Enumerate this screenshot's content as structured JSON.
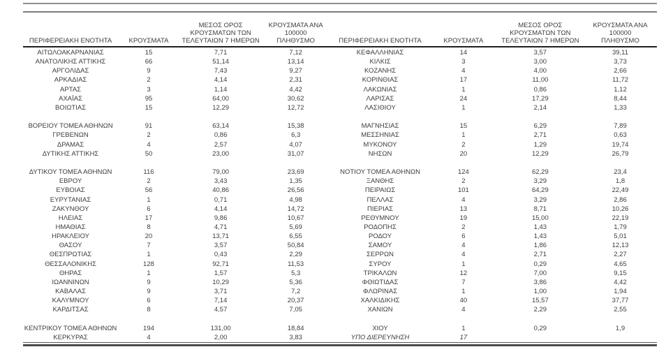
{
  "columns": [
    {
      "key": "name",
      "label": "ΠΕΡΙΦΕΡΕΙΑΚΗ ΕΝΟΤΗΤΑ",
      "label_lines": [
        "ΠΕΡΙΦΕΡΕΙΑΚΗ ΕΝΟΤΗΤΑ"
      ]
    },
    {
      "key": "cases",
      "label": "ΚΡΟΥΣΜΑΤΑ",
      "label_lines": [
        "ΚΡΟΥΣΜΑΤΑ"
      ]
    },
    {
      "key": "avg7",
      "label": "ΜΕΣΟΣ ΟΡΟΣ ΚΡΟΥΣΜΑΤΩΝ ΤΩΝ ΤΕΛΕΥΤΑΙΩΝ 7 ΗΜΕΡΩΝ",
      "label_lines": [
        "ΜΕΣΟΣ ΟΡΟΣ",
        "ΚΡΟΥΣΜΑΤΩΝ ΤΩΝ",
        "ΤΕΛΕΥΤΑΙΩΝ 7 ΗΜΕΡΩΝ"
      ]
    },
    {
      "key": "per100k",
      "label": "ΚΡΟΥΣΜΑΤΑ ΑΝΑ 100000 ΠΛΗΘΥΣΜΟ",
      "label_lines": [
        "ΚΡΟΥΣΜΑΤΑ ΑΝΑ 100000",
        "ΠΛΗΘΥΣΜΟ"
      ]
    }
  ],
  "colors": {
    "text": "#3d3d3d",
    "top_rules": "#8f8f8f",
    "header_rule": "#1f1f1f",
    "bottom_rule": "#4a4a4a"
  },
  "tables": [
    {
      "side": "left",
      "groups": [
        [
          {
            "name": "ΑΙΤΩΛΟΑΚΑΡΝΑΝΙΑΣ",
            "cases": "15",
            "avg7": "7,71",
            "per100k": "7,12"
          },
          {
            "name": "ΑΝΑΤΟΛΙΚΗΣ ΑΤΤΙΚΗΣ",
            "cases": "66",
            "avg7": "51,14",
            "per100k": "13,14"
          },
          {
            "name": "ΑΡΓΟΛΙΔΑΣ",
            "cases": "9",
            "avg7": "7,43",
            "per100k": "9,27"
          },
          {
            "name": "ΑΡΚΑΔΙΑΣ",
            "cases": "2",
            "avg7": "4,14",
            "per100k": "2,31"
          },
          {
            "name": "ΑΡΤΑΣ",
            "cases": "3",
            "avg7": "1,14",
            "per100k": "4,42"
          },
          {
            "name": "ΑΧΑΪΑΣ",
            "cases": "95",
            "avg7": "64,00",
            "per100k": "30,62"
          },
          {
            "name": "ΒΟΙΩΤΙΑΣ",
            "cases": "15",
            "avg7": "12,29",
            "per100k": "12,72"
          }
        ],
        [
          {
            "name": "ΒΟΡΕΙΟΥ ΤΟΜΕΑ ΑΘΗΝΩΝ",
            "cases": "91",
            "avg7": "63,14",
            "per100k": "15,38"
          },
          {
            "name": "ΓΡΕΒΕΝΩΝ",
            "cases": "2",
            "avg7": "0,86",
            "per100k": "6,3"
          },
          {
            "name": "ΔΡΑΜΑΣ",
            "cases": "4",
            "avg7": "2,57",
            "per100k": "4,07"
          },
          {
            "name": "ΔΥΤΙΚΗΣ ΑΤΤΙΚΗΣ",
            "cases": "50",
            "avg7": "23,00",
            "per100k": "31,07"
          }
        ],
        [
          {
            "name": "ΔΥΤΙΚΟΥ ΤΟΜΕΑ ΑΘΗΝΩΝ",
            "cases": "116",
            "avg7": "79,00",
            "per100k": "23,69"
          },
          {
            "name": "ΕΒΡΟΥ",
            "cases": "2",
            "avg7": "3,43",
            "per100k": "1,35"
          },
          {
            "name": "ΕΥΒΟΙΑΣ",
            "cases": "56",
            "avg7": "40,86",
            "per100k": "26,56"
          },
          {
            "name": "ΕΥΡΥΤΑΝΙΑΣ",
            "cases": "1",
            "avg7": "0,71",
            "per100k": "4,98"
          },
          {
            "name": "ΖΑΚΥΝΘΟΥ",
            "cases": "6",
            "avg7": "4,14",
            "per100k": "14,72"
          },
          {
            "name": "ΗΛΕΙΑΣ",
            "cases": "17",
            "avg7": "9,86",
            "per100k": "10,67"
          },
          {
            "name": "ΗΜΑΘΙΑΣ",
            "cases": "8",
            "avg7": "4,71",
            "per100k": "5,69"
          },
          {
            "name": "ΗΡΑΚΛΕΙΟΥ",
            "cases": "20",
            "avg7": "13,71",
            "per100k": "6,55"
          },
          {
            "name": "ΘΑΣΟΥ",
            "cases": "7",
            "avg7": "3,57",
            "per100k": "50,84"
          },
          {
            "name": "ΘΕΣΠΡΩΤΙΑΣ",
            "cases": "1",
            "avg7": "0,43",
            "per100k": "2,29"
          },
          {
            "name": "ΘΕΣΣΑΛΟΝΙΚΗΣ",
            "cases": "128",
            "avg7": "92,71",
            "per100k": "11,53"
          },
          {
            "name": "ΘΗΡΑΣ",
            "cases": "1",
            "avg7": "1,57",
            "per100k": "5,3"
          },
          {
            "name": "ΙΩΑΝΝΙΝΩΝ",
            "cases": "9",
            "avg7": "10,29",
            "per100k": "5,36"
          },
          {
            "name": "ΚΑΒΑΛΑΣ",
            "cases": "9",
            "avg7": "3,71",
            "per100k": "7,2"
          },
          {
            "name": "ΚΑΛΥΜΝΟΥ",
            "cases": "6",
            "avg7": "7,14",
            "per100k": "20,37"
          },
          {
            "name": "ΚΑΡΔΙΤΣΑΣ",
            "cases": "8",
            "avg7": "4,57",
            "per100k": "7,05"
          }
        ],
        [
          {
            "name": "ΚΕΝΤΡΙΚΟΥ ΤΟΜΕΑ ΑΘΗΝΩΝ",
            "cases": "194",
            "avg7": "131,00",
            "per100k": "18,84"
          },
          {
            "name": "ΚΕΡΚΥΡΑΣ",
            "cases": "4",
            "avg7": "2,00",
            "per100k": "3,83"
          }
        ]
      ]
    },
    {
      "side": "right",
      "groups": [
        [
          {
            "name": "ΚΕΦΑΛΛΗΝΙΑΣ",
            "cases": "14",
            "avg7": "3,57",
            "per100k": "39,11"
          },
          {
            "name": "ΚΙΛΚΙΣ",
            "cases": "3",
            "avg7": "3,00",
            "per100k": "3,73"
          },
          {
            "name": "ΚΟΖΑΝΗΣ",
            "cases": "4",
            "avg7": "4,00",
            "per100k": "2,66"
          },
          {
            "name": "ΚΟΡΙΝΘΙΑΣ",
            "cases": "17",
            "avg7": "11,00",
            "per100k": "11,72"
          },
          {
            "name": "ΛΑΚΩΝΙΑΣ",
            "cases": "1",
            "avg7": "0,86",
            "per100k": "1,12"
          },
          {
            "name": "ΛΑΡΙΣΑΣ",
            "cases": "24",
            "avg7": "17,29",
            "per100k": "8,44"
          },
          {
            "name": "ΛΑΣΙΘΙΟΥ",
            "cases": "1",
            "avg7": "2,14",
            "per100k": "1,33"
          }
        ],
        [
          {
            "name": "ΜΑΓΝΗΣΙΑΣ",
            "cases": "15",
            "avg7": "6,29",
            "per100k": "7,89"
          },
          {
            "name": "ΜΕΣΣΗΝΙΑΣ",
            "cases": "1",
            "avg7": "2,71",
            "per100k": "0,63"
          },
          {
            "name": "ΜΥΚΟΝΟΥ",
            "cases": "2",
            "avg7": "1,29",
            "per100k": "19,74"
          },
          {
            "name": "ΝΗΣΩΝ",
            "cases": "20",
            "avg7": "12,29",
            "per100k": "26,79"
          }
        ],
        [
          {
            "name": "ΝΟΤΙΟΥ ΤΟΜΕΑ ΑΘΗΝΩΝ",
            "cases": "124",
            "avg7": "62,29",
            "per100k": "23,4"
          },
          {
            "name": "ΞΑΝΘΗΣ",
            "cases": "2",
            "avg7": "3,29",
            "per100k": "1,8"
          },
          {
            "name": "ΠΕΙΡΑΙΩΣ",
            "cases": "101",
            "avg7": "64,29",
            "per100k": "22,49"
          },
          {
            "name": "ΠΕΛΛΑΣ",
            "cases": "4",
            "avg7": "3,29",
            "per100k": "2,86"
          },
          {
            "name": "ΠΙΕΡΙΑΣ",
            "cases": "13",
            "avg7": "8,71",
            "per100k": "10,26"
          },
          {
            "name": "ΡΕΘΥΜΝΟΥ",
            "cases": "19",
            "avg7": "15,00",
            "per100k": "22,19"
          },
          {
            "name": "ΡΟΔΟΠΗΣ",
            "cases": "2",
            "avg7": "1,43",
            "per100k": "1,79"
          },
          {
            "name": "ΡΟΔΟΥ",
            "cases": "6",
            "avg7": "1,43",
            "per100k": "5,01"
          },
          {
            "name": "ΣΑΜΟΥ",
            "cases": "4",
            "avg7": "1,86",
            "per100k": "12,13"
          },
          {
            "name": "ΣΕΡΡΩΝ",
            "cases": "4",
            "avg7": "2,71",
            "per100k": "2,27"
          },
          {
            "name": "ΣΥΡΟΥ",
            "cases": "1",
            "avg7": "0,29",
            "per100k": "4,65"
          },
          {
            "name": "ΤΡΙΚΑΛΩΝ",
            "cases": "12",
            "avg7": "7,00",
            "per100k": "9,15"
          },
          {
            "name": "ΦΘΙΩΤΙΔΑΣ",
            "cases": "7",
            "avg7": "3,86",
            "per100k": "4,42"
          },
          {
            "name": "ΦΛΩΡΙΝΑΣ",
            "cases": "1",
            "avg7": "1,00",
            "per100k": "1,94"
          },
          {
            "name": "ΧΑΛΚΙΔΙΚΗΣ",
            "cases": "40",
            "avg7": "15,57",
            "per100k": "37,77"
          },
          {
            "name": "ΧΑΝΙΩΝ",
            "cases": "4",
            "avg7": "2,29",
            "per100k": "2,55"
          }
        ],
        [
          {
            "name": "ΧΙΟΥ",
            "cases": "1",
            "avg7": "0,29",
            "per100k": "1,9"
          },
          {
            "name": "ΥΠΟ ΔΙΕΡΕΥΝΗΣΗ",
            "cases": "17",
            "avg7": "",
            "per100k": "",
            "italic": true
          }
        ]
      ]
    }
  ]
}
